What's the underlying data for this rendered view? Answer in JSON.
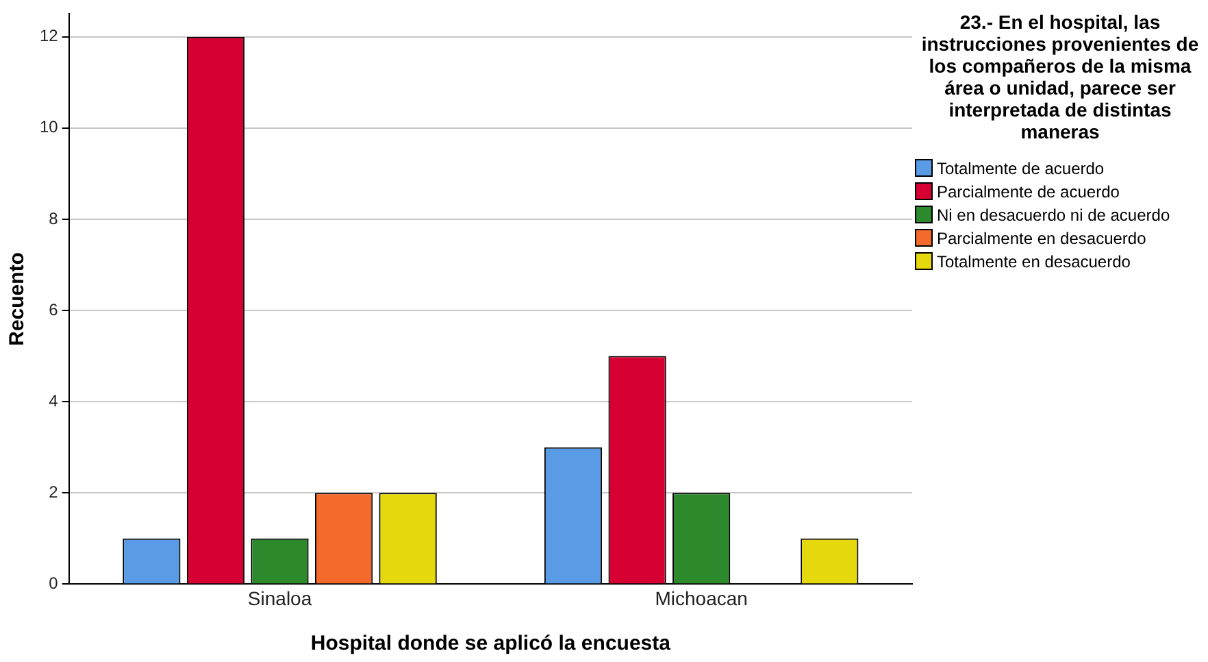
{
  "chart_data": {
    "type": "bar",
    "xlabel": "Hospital donde se aplicó la encuesta",
    "ylabel": "Recuento",
    "legend_title": "23.- En el hospital, las instrucciones provenientes de los compañeros de la misma área o unidad, parece ser interpretada de distintas maneras",
    "categories": [
      "Sinaloa",
      "Michoacan"
    ],
    "series": [
      {
        "name": "Totalmente de acuerdo",
        "color": "#5a9be6",
        "values": [
          1,
          3
        ]
      },
      {
        "name": "Parcialmente de acuerdo",
        "color": "#d70033",
        "values": [
          12,
          5
        ]
      },
      {
        "name": "Ni en desacuerdo ni de acuerdo",
        "color": "#2c8a2c",
        "values": [
          1,
          2
        ]
      },
      {
        "name": "Parcialmente en desacuerdo",
        "color": "#f36a2c",
        "values": [
          2,
          null
        ]
      },
      {
        "name": "Totalmente en desacuerdo",
        "color": "#e5d80c",
        "values": [
          2,
          1
        ]
      }
    ],
    "ylim": [
      0,
      12.5
    ],
    "yticks": [
      0,
      2,
      4,
      6,
      8,
      10,
      12
    ],
    "grid": "y",
    "legend": "right"
  }
}
